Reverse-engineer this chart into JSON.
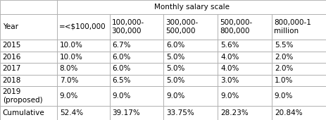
{
  "title": "Monthly salary scale",
  "col_headers": [
    "=<$100,000",
    "100,000-\n300,000",
    "300,000-\n500,000",
    "500,000-\n800,000",
    "800,000-1\nmillion"
  ],
  "row_header_label": "Year",
  "row_headers": [
    "2015",
    "2016",
    "2017",
    "2018",
    "2019\n(proposed)",
    "Cumulative"
  ],
  "table_data": [
    [
      "10.0%",
      "6.7%",
      "6.0%",
      "5.6%",
      "5.5%"
    ],
    [
      "10.0%",
      "6.0%",
      "5.0%",
      "4.0%",
      "2.0%"
    ],
    [
      "8.0%",
      "6.0%",
      "5.0%",
      "4.0%",
      "2.0%"
    ],
    [
      "7.0%",
      "6.5%",
      "5.0%",
      "3.0%",
      "1.0%"
    ],
    [
      "9.0%",
      "9.0%",
      "9.0%",
      "9.0%",
      "9.0%"
    ],
    [
      "52.4%",
      "39.17%",
      "33.75%",
      "28.23%",
      "20.84%"
    ]
  ],
  "bg_color": "#ffffff",
  "border_color": "#aaaaaa",
  "font_size": 7.5,
  "figsize": [
    4.63,
    1.7
  ],
  "dpi": 100
}
